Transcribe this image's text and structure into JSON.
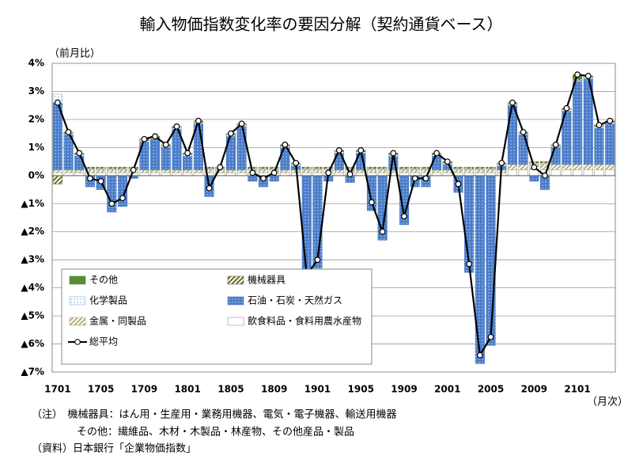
{
  "chart_data": {
    "type": "bar",
    "stacked": true,
    "title": "輸入物価指数変化率の要因分解（契約通貨ベース）",
    "y_axis_label": "（前月比）",
    "x_axis_label": "（月次）",
    "categories": [
      "1701",
      null,
      null,
      null,
      "1705",
      null,
      null,
      null,
      "1709",
      null,
      null,
      null,
      "1801",
      null,
      null,
      null,
      "1805",
      null,
      null,
      null,
      "1809",
      null,
      null,
      null,
      "1901",
      null,
      null,
      null,
      "1905",
      null,
      null,
      null,
      "1909",
      null,
      null,
      null,
      "2001",
      null,
      null,
      null,
      "2005",
      null,
      null,
      null,
      "2009",
      null,
      null,
      null,
      "2101",
      null,
      null,
      null
    ],
    "ylim": [
      -7,
      4
    ],
    "yticks": [
      {
        "value": 4,
        "label": "4%"
      },
      {
        "value": 3,
        "label": "3%"
      },
      {
        "value": 2,
        "label": "2%"
      },
      {
        "value": 1,
        "label": "1%"
      },
      {
        "value": 0,
        "label": "0%"
      },
      {
        "value": -1,
        "label": "▲1%"
      },
      {
        "value": -2,
        "label": "▲2%"
      },
      {
        "value": -3,
        "label": "▲3%"
      },
      {
        "value": -4,
        "label": "▲4%"
      },
      {
        "value": -5,
        "label": "▲5%"
      },
      {
        "value": -6,
        "label": "▲6%"
      },
      {
        "value": -7,
        "label": "▲7%"
      }
    ],
    "negative_tick_color": "#e00000",
    "grid": true,
    "legend": "lower left",
    "series": [
      {
        "name": "その他",
        "color": "#5b8a3c",
        "pattern": "solid",
        "values": [
          0,
          0,
          0,
          0,
          0,
          0,
          0,
          0,
          0,
          0,
          0,
          0,
          0,
          0,
          0,
          0,
          0,
          0,
          0,
          0,
          0,
          0,
          0,
          0,
          0,
          0,
          0,
          0,
          0,
          0,
          0,
          0,
          0,
          0,
          0,
          0,
          0,
          0,
          0,
          0,
          0,
          0,
          0,
          0,
          0,
          0,
          0,
          0,
          0.15,
          0,
          0,
          0
        ]
      },
      {
        "name": "機械器具",
        "color": "#6b6b2a",
        "pattern": "hatch",
        "values": [
          -0.3,
          0.05,
          0.05,
          0.05,
          0.05,
          0.05,
          0.05,
          0.05,
          0.05,
          0.05,
          0.05,
          0.05,
          0.05,
          0.05,
          0.05,
          0.05,
          0.05,
          0.05,
          0.05,
          0.05,
          0.05,
          0.05,
          0.05,
          0.05,
          0.05,
          0.05,
          0.05,
          0.05,
          0.05,
          0.05,
          0.05,
          0.05,
          0.05,
          0.05,
          0.05,
          0.05,
          0.05,
          0.05,
          0.05,
          0.05,
          0.05,
          0.05,
          0.05,
          0.05,
          0.05,
          0.05,
          0.05,
          0.05,
          0.05,
          0.05,
          0.05,
          0.05
        ]
      },
      {
        "name": "化学製品",
        "color": "#7fb3d9",
        "pattern": "lightdots",
        "values": [
          0.3,
          0.05,
          0.05,
          0.05,
          0.05,
          0.05,
          0.05,
          0.05,
          0.05,
          0.05,
          0.05,
          0.05,
          0.05,
          0.05,
          0.05,
          0.05,
          0.05,
          0.05,
          0.05,
          0.05,
          0.05,
          0.05,
          0.05,
          0.05,
          0.05,
          0.05,
          0.05,
          0.05,
          0.05,
          0.05,
          0.05,
          0.05,
          0.05,
          0.05,
          0.05,
          0.05,
          0.05,
          0.05,
          0.05,
          0.05,
          0.05,
          0.05,
          0.05,
          0.05,
          0.05,
          0.05,
          0.05,
          0.05,
          0.05,
          0.05,
          0.05,
          0.05
        ]
      },
      {
        "name": "石油・石炭・天然ガス",
        "color": "#4a7cc9",
        "pattern": "dots",
        "values": [
          2.4,
          1.25,
          0.5,
          -0.4,
          -0.5,
          -1.3,
          -1.1,
          -0.1,
          1.0,
          1.1,
          0.8,
          1.45,
          0.5,
          1.65,
          -0.75,
          0.0,
          1.2,
          1.55,
          -0.2,
          -0.4,
          -0.2,
          0.8,
          0.15,
          -3.85,
          -3.3,
          -0.2,
          0.6,
          -0.25,
          0.6,
          -1.25,
          -2.3,
          0.5,
          -1.75,
          -0.4,
          -0.4,
          0.5,
          0.2,
          -0.6,
          -3.45,
          -6.7,
          -6.05,
          0.15,
          2.1,
          1.05,
          -0.2,
          -0.5,
          0.6,
          1.9,
          2.95,
          3.05,
          1.3,
          1.45
        ]
      },
      {
        "name": "金属・同製品",
        "color": "#b8b07a",
        "pattern": "hatch",
        "values": [
          0.1,
          0.1,
          0.1,
          0.1,
          0.1,
          0.1,
          0.1,
          0.1,
          0.1,
          0.1,
          0.1,
          0.1,
          0.1,
          0.1,
          0.1,
          0.1,
          0.1,
          0.1,
          0.1,
          0.1,
          0.1,
          0.1,
          0.1,
          0.1,
          0.1,
          0.1,
          0.1,
          0.1,
          0.1,
          0.1,
          0.1,
          0.1,
          0.1,
          0.1,
          0.1,
          0.1,
          0.1,
          0.1,
          0.1,
          0.1,
          0.1,
          0.1,
          0.2,
          0.2,
          0.2,
          0.2,
          0.2,
          0.2,
          0.2,
          0.2,
          0.2,
          0.2
        ]
      },
      {
        "name": "飲食料品・食料用農水産物",
        "color": "#ffffff",
        "pattern": "solid",
        "values": [
          0.1,
          0.1,
          0.1,
          0.1,
          0.1,
          0.1,
          0.1,
          0.1,
          0.1,
          0.1,
          0.1,
          0.1,
          0.1,
          0.1,
          0.1,
          0.1,
          0.1,
          0.1,
          0.1,
          0.1,
          0.1,
          0.1,
          0.1,
          0.1,
          0.1,
          0.1,
          0.1,
          0.1,
          0.1,
          0.1,
          0.1,
          0.1,
          0.1,
          0.1,
          0.1,
          0.1,
          0.1,
          0.1,
          0.1,
          0.1,
          0.1,
          0.1,
          0.2,
          0.2,
          0.2,
          0.2,
          0.2,
          0.2,
          0.2,
          0.2,
          0.2,
          0.2
        ]
      }
    ],
    "line": {
      "name": "総平均",
      "color": "#000000",
      "values": [
        2.6,
        1.55,
        0.8,
        -0.1,
        -0.2,
        -1.0,
        -0.8,
        0.2,
        1.3,
        1.4,
        1.1,
        1.75,
        0.8,
        1.95,
        -0.45,
        0.3,
        1.5,
        1.85,
        0.1,
        -0.1,
        0.1,
        1.1,
        0.45,
        -3.55,
        -3.0,
        0.1,
        0.9,
        0.05,
        0.9,
        -0.95,
        -2.0,
        0.8,
        -1.45,
        -0.1,
        -0.1,
        0.8,
        0.5,
        -0.3,
        -3.15,
        -6.4,
        -5.75,
        0.45,
        2.6,
        1.55,
        0.3,
        0.0,
        1.1,
        2.4,
        3.6,
        3.55,
        1.8,
        1.95
      ]
    },
    "notes": [
      "（注）　機械器具：はん用・生産用・業務用機器、電気・電子機器、輸送用機器",
      "その他：繊維品、木材・木製品・林産物、その他産品・製品",
      "（資料）日本銀行「企業物価指数」"
    ]
  }
}
